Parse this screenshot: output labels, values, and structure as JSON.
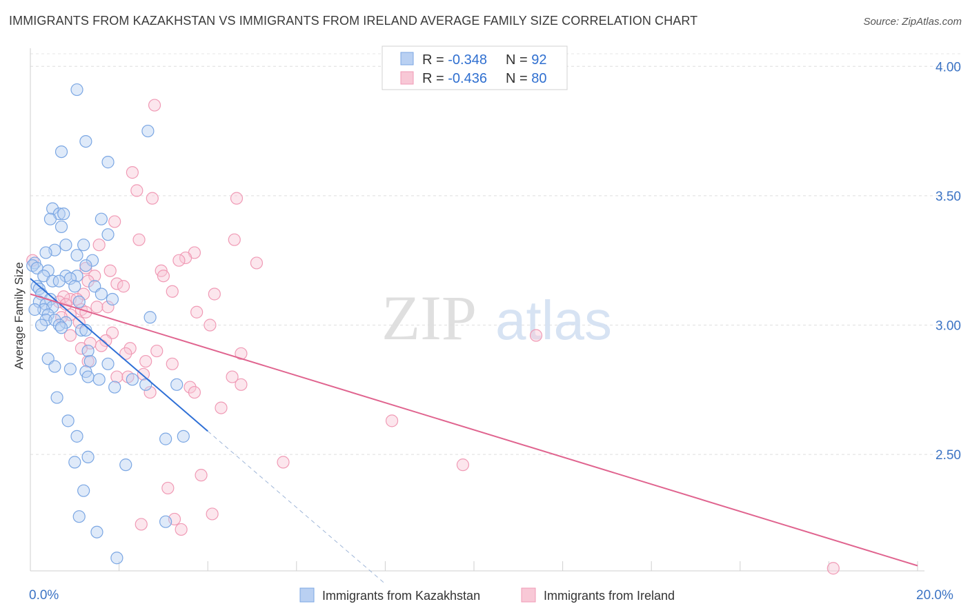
{
  "title": "IMMIGRANTS FROM KAZAKHSTAN VS IMMIGRANTS FROM IRELAND AVERAGE FAMILY SIZE CORRELATION CHART",
  "source": "Source: ZipAtlas.com",
  "watermark": {
    "zip": "ZIP",
    "atlas": "atlas"
  },
  "chart_data": {
    "type": "scatter",
    "ylabel": "Average Family Size",
    "xlim": [
      0,
      20
    ],
    "ylim": [
      2.05,
      4.07
    ],
    "x_tick_labels": {
      "left": "0.0%",
      "right": "20.0%"
    },
    "y_ticks": [
      {
        "value": 4.0,
        "label": "4.00"
      },
      {
        "value": 3.5,
        "label": "3.50"
      },
      {
        "value": 3.0,
        "label": "3.00"
      },
      {
        "value": 2.5,
        "label": "2.50"
      }
    ],
    "legend": {
      "kaz": {
        "r_label": "R = ",
        "r_value": "-0.348",
        "n_label": "N = ",
        "n_value": "92"
      },
      "ire": {
        "r_label": "R = ",
        "r_value": "-0.436",
        "n_label": "N = ",
        "n_value": "80"
      }
    },
    "series": [
      {
        "name": "Immigrants from Kazakhstan",
        "color": "#7aa6e3",
        "fill": "#b9d0f2",
        "line_color": "#2e6fd6",
        "trend": {
          "x0": 0.0,
          "y0": 3.18,
          "x1": 4.0,
          "y1": 2.59,
          "dash_to_x": 8.0
        },
        "points": [
          [
            1.05,
            3.91
          ],
          [
            1.25,
            3.71
          ],
          [
            0.7,
            3.67
          ],
          [
            2.65,
            3.75
          ],
          [
            1.75,
            3.63
          ],
          [
            0.5,
            3.45
          ],
          [
            0.65,
            3.43
          ],
          [
            0.75,
            3.43
          ],
          [
            0.45,
            3.41
          ],
          [
            0.7,
            3.38
          ],
          [
            1.6,
            3.41
          ],
          [
            1.75,
            3.35
          ],
          [
            0.8,
            3.31
          ],
          [
            1.2,
            3.31
          ],
          [
            0.55,
            3.29
          ],
          [
            0.35,
            3.28
          ],
          [
            1.05,
            3.27
          ],
          [
            1.4,
            3.25
          ],
          [
            0.1,
            3.24
          ],
          [
            0.05,
            3.23
          ],
          [
            0.15,
            3.22
          ],
          [
            1.25,
            3.23
          ],
          [
            0.4,
            3.21
          ],
          [
            0.3,
            3.19
          ],
          [
            0.8,
            3.19
          ],
          [
            1.05,
            3.19
          ],
          [
            0.9,
            3.18
          ],
          [
            0.5,
            3.17
          ],
          [
            0.65,
            3.17
          ],
          [
            0.15,
            3.15
          ],
          [
            0.2,
            3.14
          ],
          [
            1.0,
            3.15
          ],
          [
            1.45,
            3.15
          ],
          [
            0.25,
            3.12
          ],
          [
            0.45,
            3.1
          ],
          [
            1.6,
            3.12
          ],
          [
            1.85,
            3.1
          ],
          [
            0.2,
            3.09
          ],
          [
            0.35,
            3.08
          ],
          [
            0.5,
            3.07
          ],
          [
            1.1,
            3.09
          ],
          [
            0.3,
            3.06
          ],
          [
            0.1,
            3.06
          ],
          [
            0.4,
            3.04
          ],
          [
            0.35,
            3.02
          ],
          [
            0.55,
            3.02
          ],
          [
            0.8,
            3.01
          ],
          [
            0.65,
            3.0
          ],
          [
            0.25,
            3.0
          ],
          [
            0.7,
            2.99
          ],
          [
            1.15,
            2.98
          ],
          [
            1.25,
            2.98
          ],
          [
            2.7,
            3.03
          ],
          [
            0.4,
            2.87
          ],
          [
            1.3,
            2.9
          ],
          [
            1.35,
            2.86
          ],
          [
            0.55,
            2.84
          ],
          [
            0.9,
            2.83
          ],
          [
            1.75,
            2.85
          ],
          [
            1.25,
            2.82
          ],
          [
            1.3,
            2.8
          ],
          [
            1.55,
            2.79
          ],
          [
            1.9,
            2.76
          ],
          [
            2.3,
            2.79
          ],
          [
            2.6,
            2.77
          ],
          [
            3.3,
            2.77
          ],
          [
            0.6,
            2.72
          ],
          [
            0.85,
            2.63
          ],
          [
            1.05,
            2.57
          ],
          [
            3.05,
            2.56
          ],
          [
            3.45,
            2.57
          ],
          [
            1.3,
            2.49
          ],
          [
            1.0,
            2.47
          ],
          [
            2.15,
            2.46
          ],
          [
            1.2,
            2.36
          ],
          [
            1.1,
            2.26
          ],
          [
            3.05,
            2.24
          ],
          [
            1.5,
            2.2
          ],
          [
            1.95,
            2.1
          ]
        ]
      },
      {
        "name": "Immigrants from Ireland",
        "color": "#f09ab5",
        "fill": "#f8c8d6",
        "line_color": "#e0648f",
        "trend": {
          "x0": 0.0,
          "y0": 3.12,
          "x1": 20.0,
          "y1": 2.07
        },
        "points": [
          [
            0.05,
            3.25
          ],
          [
            2.8,
            3.85
          ],
          [
            2.3,
            3.59
          ],
          [
            2.4,
            3.52
          ],
          [
            2.75,
            3.49
          ],
          [
            4.65,
            3.49
          ],
          [
            1.9,
            3.4
          ],
          [
            2.45,
            3.33
          ],
          [
            4.6,
            3.33
          ],
          [
            1.55,
            3.31
          ],
          [
            3.7,
            3.28
          ],
          [
            3.5,
            3.26
          ],
          [
            3.35,
            3.25
          ],
          [
            5.1,
            3.24
          ],
          [
            1.25,
            3.22
          ],
          [
            1.8,
            3.21
          ],
          [
            2.95,
            3.21
          ],
          [
            3.0,
            3.19
          ],
          [
            1.45,
            3.19
          ],
          [
            1.3,
            3.17
          ],
          [
            1.95,
            3.16
          ],
          [
            2.1,
            3.15
          ],
          [
            3.2,
            3.13
          ],
          [
            4.15,
            3.12
          ],
          [
            1.2,
            3.12
          ],
          [
            0.9,
            3.1
          ],
          [
            0.75,
            3.11
          ],
          [
            1.05,
            3.1
          ],
          [
            0.65,
            3.09
          ],
          [
            0.8,
            3.08
          ],
          [
            1.5,
            3.07
          ],
          [
            1.75,
            3.07
          ],
          [
            1.15,
            3.06
          ],
          [
            1.25,
            3.05
          ],
          [
            3.75,
            3.05
          ],
          [
            0.9,
            3.04
          ],
          [
            0.7,
            3.03
          ],
          [
            1.1,
            3.01
          ],
          [
            4.05,
            3.0
          ],
          [
            1.85,
            2.97
          ],
          [
            0.9,
            2.96
          ],
          [
            11.4,
            2.96
          ],
          [
            1.7,
            2.94
          ],
          [
            1.35,
            2.93
          ],
          [
            1.6,
            2.92
          ],
          [
            1.15,
            2.91
          ],
          [
            2.25,
            2.91
          ],
          [
            2.15,
            2.89
          ],
          [
            2.85,
            2.9
          ],
          [
            4.75,
            2.89
          ],
          [
            1.3,
            2.86
          ],
          [
            2.6,
            2.86
          ],
          [
            3.2,
            2.85
          ],
          [
            2.55,
            2.81
          ],
          [
            1.95,
            2.8
          ],
          [
            2.2,
            2.8
          ],
          [
            4.55,
            2.8
          ],
          [
            4.75,
            2.77
          ],
          [
            3.6,
            2.76
          ],
          [
            2.7,
            2.74
          ],
          [
            3.7,
            2.74
          ],
          [
            4.3,
            2.68
          ],
          [
            8.15,
            2.63
          ],
          [
            5.7,
            2.47
          ],
          [
            9.75,
            2.46
          ],
          [
            3.85,
            2.42
          ],
          [
            3.1,
            2.37
          ],
          [
            4.1,
            2.27
          ],
          [
            3.25,
            2.25
          ],
          [
            2.5,
            2.23
          ],
          [
            3.4,
            2.21
          ],
          [
            18.1,
            2.06
          ]
        ]
      }
    ]
  }
}
